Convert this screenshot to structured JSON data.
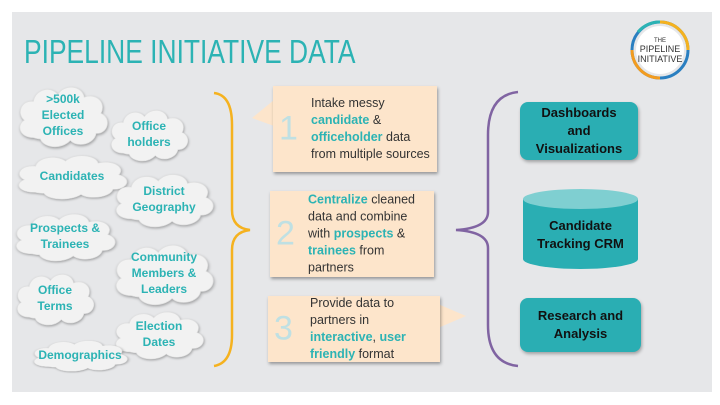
{
  "title": "PIPELINE INITIATIVE DATA",
  "logo": {
    "text": "THE PIPELINE INITIATIVE"
  },
  "colors": {
    "teal": "#2cb3b4",
    "box_teal": "#2aaeb3",
    "peach": "#fde5cb",
    "yellow_brace": "#f5b21f",
    "purple_brace": "#8064a2",
    "background": "#e6e7e9"
  },
  "sources": [
    ">500k Elected Offices",
    "Office holders",
    "Candidates",
    "District Geography",
    "Prospects & Trainees",
    "Community Members & Leaders",
    "Office Terms",
    "Election Dates",
    "Demographics"
  ],
  "steps": [
    {
      "number": "1",
      "parts": [
        [
          "Intake messy ",
          false
        ],
        [
          "candidate",
          true
        ],
        [
          " & ",
          false
        ],
        [
          "officeholder",
          true
        ],
        [
          " data from multiple sources",
          false
        ]
      ]
    },
    {
      "number": "2",
      "parts": [
        [
          "Centralize",
          true
        ],
        [
          " cleaned data and combine with ",
          false
        ],
        [
          "prospects",
          true
        ],
        [
          " & ",
          false
        ],
        [
          "trainees",
          true
        ],
        [
          " from partners",
          false
        ]
      ]
    },
    {
      "number": "3",
      "parts": [
        [
          "Provide data to partners in ",
          false
        ],
        [
          "interactive",
          true
        ],
        [
          ", ",
          false
        ],
        [
          "user friendly",
          true
        ],
        [
          " format",
          false
        ]
      ]
    }
  ],
  "outputs": [
    "Dashboards and Visualizations",
    "Candidate Tracking CRM",
    "Research and Analysis"
  ]
}
